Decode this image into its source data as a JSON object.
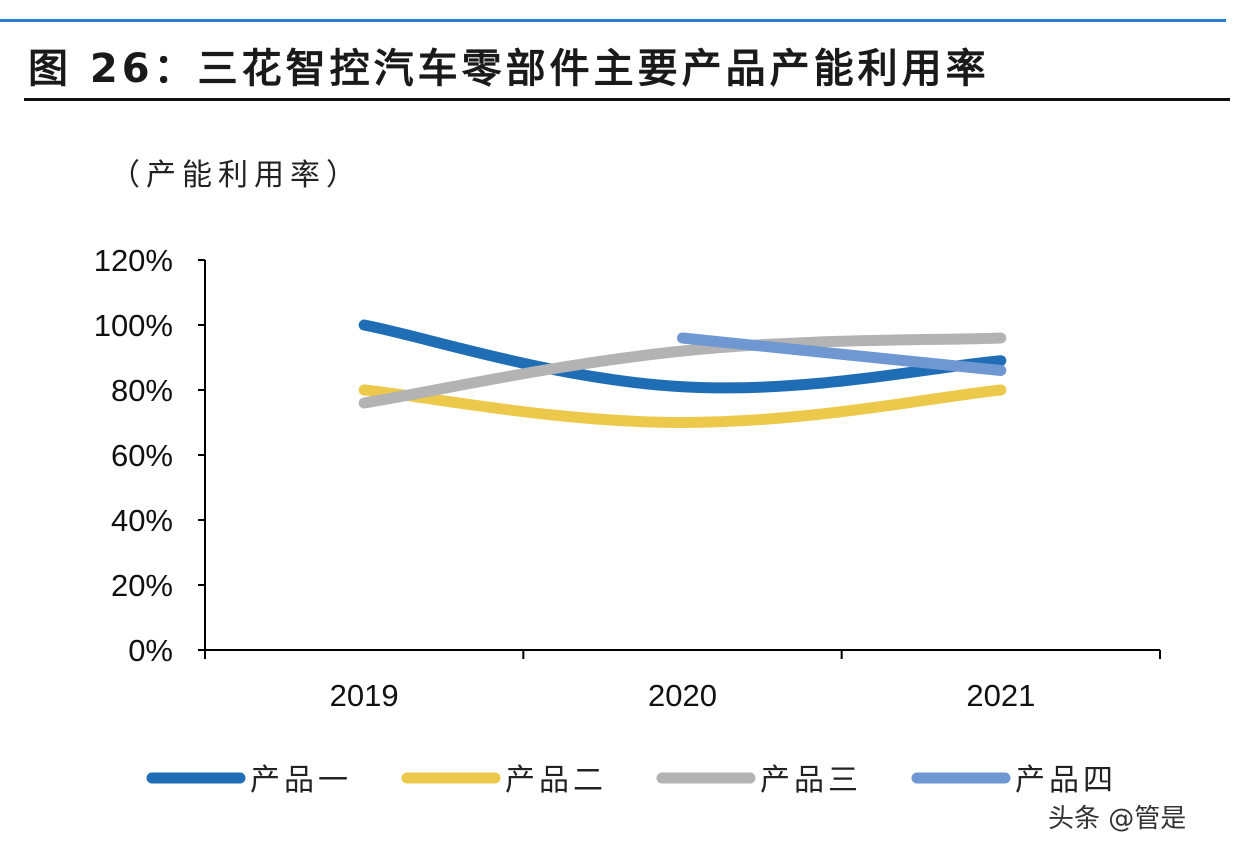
{
  "title": "图 26：三花智控汽车零部件主要产品产能利用率",
  "watermark": "头条 @管是",
  "chart_data": {
    "type": "line",
    "title": "图 26：三花智控汽车零部件主要产品产能利用率",
    "ylabel": "（产能利用率）",
    "xlabel": "",
    "categories": [
      "2019",
      "2020",
      "2021"
    ],
    "ylim": [
      0,
      120
    ],
    "yticks": [
      "0%",
      "20%",
      "40%",
      "60%",
      "80%",
      "100%",
      "120%"
    ],
    "grid": false,
    "legend": "bottom",
    "smooth": true,
    "series": [
      {
        "name": "产品一",
        "values": [
          100,
          81,
          89
        ],
        "color": "#1f6db5"
      },
      {
        "name": "产品二",
        "values": [
          80,
          70,
          80
        ],
        "color": "#ecc94b"
      },
      {
        "name": "产品三",
        "values": [
          76,
          92,
          96
        ],
        "color": "#b3b3b3"
      },
      {
        "name": "产品四",
        "values": [
          null,
          96,
          86
        ],
        "color": "#6f97d2"
      }
    ]
  }
}
